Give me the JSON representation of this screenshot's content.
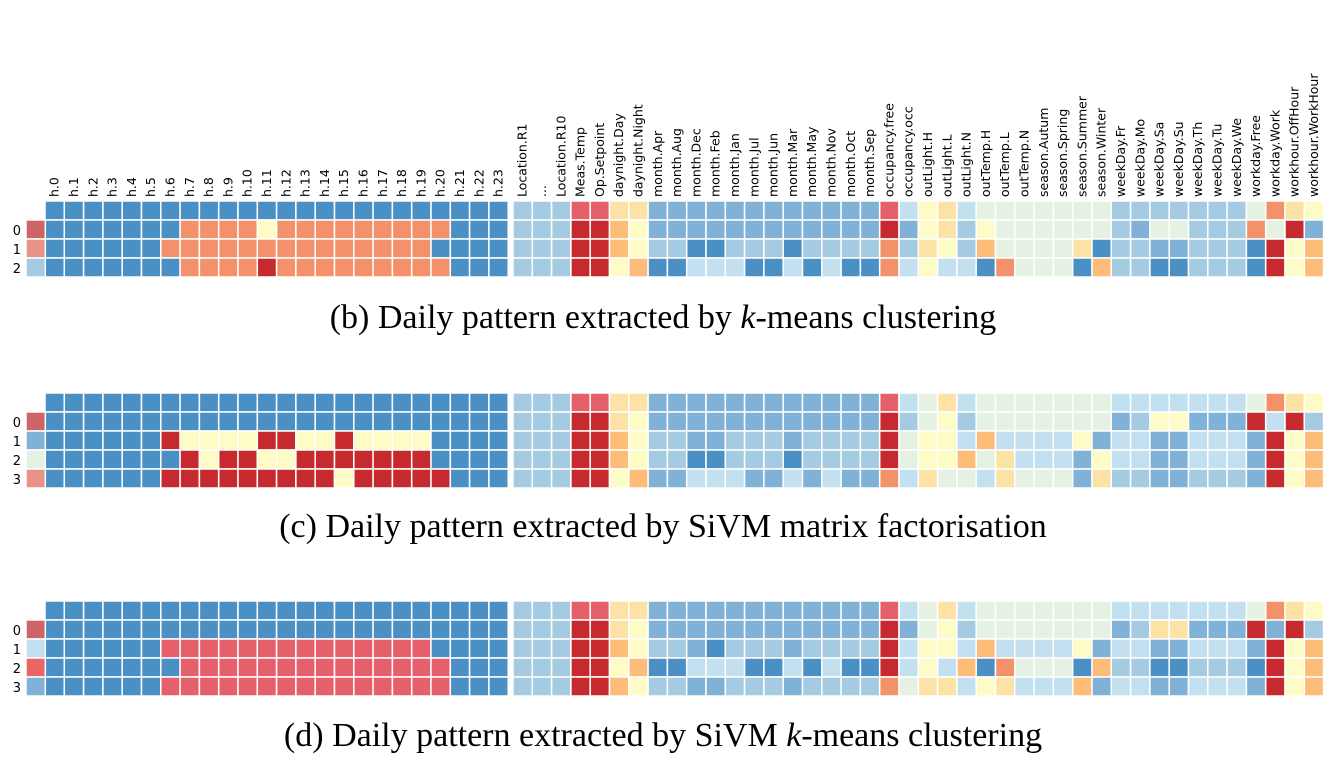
{
  "chart_data": {
    "type": "heatmap",
    "colors": {
      "0": "#4a90c4",
      "1": "#7fb2d6",
      "2": "#a4cbe2",
      "3": "#c2e0ef",
      "4": "#e5f1e3",
      "5": "#fdfbc6",
      "6": "#fde2a6",
      "7": "#fdbd78",
      "8": "#f2916a",
      "9": "#e5606a",
      "10": "#c62a2e",
      "11": "#cd6466",
      "12": "#e89185",
      "13": "#eb6464"
    },
    "columns": {
      "hours": [
        "h.0",
        "h.1",
        "h.2",
        "h.3",
        "h.4",
        "h.5",
        "h.6",
        "h.7",
        "h.8",
        "h.9",
        "h.10",
        "h.11",
        "h.12",
        "h.13",
        "h.14",
        "h.15",
        "h.16",
        "h.17",
        "h.18",
        "h.19",
        "h.20",
        "h.21",
        "h.22",
        "h.23"
      ],
      "features": [
        "Location.R1",
        "...",
        "Location.R10",
        "Meas.Temp",
        "Op.Setpoint",
        "daynight.Day",
        "daynight.Night",
        "month.Apr",
        "month.Aug",
        "month.Dec",
        "month.Feb",
        "month.Jan",
        "month.Jul",
        "month.Jun",
        "month.Mar",
        "month.May",
        "month.Nov",
        "month.Oct",
        "month.Sep",
        "occupancy.free",
        "occupancy.occ",
        "outLight.H",
        "outLight.L",
        "outLight.N",
        "outTemp.H",
        "outTemp.L",
        "outTemp.N",
        "season.Autum",
        "season.Spring",
        "season.Summer",
        "season.Winter",
        "weekDay.Fr",
        "weekDay.Mo",
        "weekDay.Sa",
        "weekDay.Su",
        "weekDay.Th",
        "weekDay.Tu",
        "weekDay.We",
        "workday.Free",
        "workday.Work",
        "workhour.OffHour",
        "workhour.WorkHour"
      ]
    },
    "panels": [
      {
        "caption_before": "(b) Daily pattern extracted by ",
        "caption_italic": "k",
        "caption_after": "-means clustering",
        "row_labels": [
          "0",
          "1",
          "2"
        ],
        "label_colors": [
          11,
          12,
          2
        ],
        "hour_ref": [
          0,
          0,
          0,
          0,
          0,
          0,
          0,
          0,
          0,
          0,
          0,
          0,
          0,
          0,
          0,
          0,
          0,
          0,
          0,
          0,
          0,
          0,
          0,
          0
        ],
        "hour_rows": [
          [
            0,
            0,
            0,
            0,
            0,
            0,
            0,
            8,
            8,
            8,
            8,
            5,
            8,
            8,
            8,
            8,
            8,
            8,
            8,
            8,
            8,
            0,
            0,
            0
          ],
          [
            0,
            0,
            0,
            0,
            0,
            0,
            8,
            8,
            8,
            8,
            8,
            8,
            8,
            8,
            8,
            8,
            8,
            8,
            8,
            8,
            0,
            0,
            0,
            0
          ],
          [
            0,
            0,
            0,
            0,
            0,
            0,
            0,
            8,
            8,
            8,
            8,
            10,
            8,
            8,
            8,
            8,
            8,
            8,
            8,
            8,
            8,
            0,
            0,
            0
          ]
        ],
        "feature_ref": [
          2,
          2,
          2,
          9,
          9,
          6,
          6,
          1,
          1,
          1,
          1,
          1,
          1,
          1,
          1,
          1,
          1,
          1,
          1,
          9,
          3,
          5,
          6,
          3,
          4,
          4,
          4,
          4,
          4,
          4,
          4,
          2,
          2,
          2,
          2,
          2,
          2,
          2,
          4,
          8,
          6,
          5
        ],
        "feature_rows": [
          [
            2,
            2,
            2,
            10,
            10,
            7,
            5,
            1,
            1,
            1,
            1,
            1,
            1,
            1,
            1,
            1,
            1,
            1,
            1,
            10,
            1,
            5,
            6,
            2,
            5,
            4,
            4,
            4,
            4,
            4,
            4,
            2,
            1,
            4,
            4,
            2,
            2,
            2,
            8,
            4,
            10,
            1
          ],
          [
            2,
            2,
            2,
            10,
            10,
            7,
            5,
            2,
            2,
            0,
            0,
            2,
            2,
            2,
            0,
            2,
            2,
            2,
            2,
            8,
            2,
            6,
            5,
            2,
            7,
            4,
            4,
            4,
            4,
            6,
            0,
            2,
            2,
            1,
            1,
            2,
            2,
            2,
            0,
            10,
            5,
            7
          ],
          [
            2,
            2,
            2,
            10,
            10,
            5,
            7,
            0,
            0,
            3,
            3,
            3,
            0,
            0,
            3,
            0,
            3,
            0,
            0,
            8,
            3,
            5,
            3,
            3,
            0,
            8,
            4,
            4,
            4,
            0,
            7,
            2,
            2,
            0,
            0,
            2,
            2,
            2,
            0,
            10,
            5,
            7
          ]
        ]
      },
      {
        "caption_before": "(c) Daily pattern extracted by SiVM matrix factorisation",
        "caption_italic": "",
        "caption_after": "",
        "row_labels": [
          "0",
          "1",
          "2",
          "3"
        ],
        "label_colors": [
          11,
          1,
          4,
          12
        ],
        "hour_ref": [
          0,
          0,
          0,
          0,
          0,
          0,
          0,
          0,
          0,
          0,
          0,
          0,
          0,
          0,
          0,
          0,
          0,
          0,
          0,
          0,
          0,
          0,
          0,
          0
        ],
        "hour_rows": [
          [
            0,
            0,
            0,
            0,
            0,
            0,
            0,
            0,
            0,
            0,
            0,
            0,
            0,
            0,
            0,
            0,
            0,
            0,
            0,
            0,
            0,
            0,
            0,
            0
          ],
          [
            0,
            0,
            0,
            0,
            0,
            0,
            10,
            5,
            5,
            5,
            5,
            10,
            10,
            5,
            5,
            10,
            5,
            5,
            5,
            5,
            0,
            0,
            0,
            0
          ],
          [
            0,
            0,
            0,
            0,
            0,
            0,
            0,
            10,
            5,
            10,
            10,
            5,
            5,
            10,
            10,
            10,
            10,
            10,
            10,
            10,
            0,
            0,
            0,
            0
          ],
          [
            0,
            0,
            0,
            0,
            0,
            0,
            10,
            10,
            10,
            10,
            10,
            10,
            10,
            10,
            10,
            5,
            10,
            10,
            10,
            10,
            10,
            0,
            0,
            0
          ]
        ],
        "feature_ref": [
          2,
          2,
          2,
          9,
          9,
          6,
          6,
          1,
          1,
          1,
          1,
          1,
          1,
          1,
          1,
          1,
          1,
          1,
          1,
          9,
          3,
          4,
          6,
          3,
          4,
          4,
          4,
          4,
          4,
          4,
          4,
          3,
          3,
          3,
          3,
          3,
          3,
          3,
          4,
          8,
          6,
          5
        ],
        "feature_rows": [
          [
            2,
            2,
            2,
            10,
            10,
            6,
            5,
            1,
            1,
            1,
            1,
            1,
            1,
            1,
            1,
            1,
            1,
            1,
            1,
            10,
            2,
            4,
            5,
            2,
            4,
            4,
            4,
            4,
            4,
            4,
            4,
            1,
            2,
            5,
            5,
            1,
            1,
            1,
            10,
            3,
            10,
            2
          ],
          [
            2,
            2,
            2,
            10,
            10,
            7,
            5,
            2,
            2,
            1,
            1,
            2,
            2,
            2,
            1,
            2,
            2,
            2,
            2,
            10,
            4,
            5,
            5,
            3,
            7,
            3,
            3,
            3,
            3,
            5,
            1,
            3,
            3,
            1,
            1,
            3,
            3,
            3,
            1,
            10,
            5,
            7
          ],
          [
            2,
            2,
            2,
            10,
            10,
            7,
            5,
            2,
            2,
            0,
            0,
            2,
            2,
            2,
            0,
            2,
            2,
            2,
            2,
            10,
            4,
            5,
            5,
            7,
            4,
            6,
            3,
            3,
            3,
            1,
            5,
            3,
            3,
            1,
            1,
            3,
            3,
            3,
            1,
            10,
            5,
            7
          ],
          [
            2,
            2,
            2,
            10,
            10,
            5,
            7,
            1,
            1,
            3,
            3,
            3,
            1,
            1,
            3,
            1,
            3,
            1,
            1,
            8,
            3,
            6,
            4,
            4,
            3,
            6,
            4,
            4,
            4,
            1,
            6,
            2,
            2,
            1,
            1,
            2,
            2,
            2,
            1,
            10,
            5,
            7
          ]
        ]
      },
      {
        "caption_before": "(d) Daily pattern extracted by SiVM ",
        "caption_italic": "k",
        "caption_after": "-means clustering",
        "row_labels": [
          "0",
          "1",
          "2",
          "3"
        ],
        "label_colors": [
          11,
          3,
          13,
          1
        ],
        "hour_ref": [
          0,
          0,
          0,
          0,
          0,
          0,
          0,
          0,
          0,
          0,
          0,
          0,
          0,
          0,
          0,
          0,
          0,
          0,
          0,
          0,
          0,
          0,
          0,
          0
        ],
        "hour_rows": [
          [
            0,
            0,
            0,
            0,
            0,
            0,
            0,
            0,
            0,
            0,
            0,
            0,
            0,
            0,
            0,
            0,
            0,
            0,
            0,
            0,
            0,
            0,
            0,
            0
          ],
          [
            0,
            0,
            0,
            0,
            0,
            0,
            9,
            9,
            9,
            9,
            9,
            9,
            9,
            9,
            9,
            9,
            9,
            9,
            9,
            9,
            0,
            0,
            0,
            0
          ],
          [
            0,
            0,
            0,
            0,
            0,
            0,
            0,
            9,
            9,
            9,
            9,
            9,
            9,
            9,
            9,
            9,
            9,
            9,
            9,
            9,
            9,
            0,
            0,
            0
          ],
          [
            0,
            0,
            0,
            0,
            0,
            0,
            9,
            9,
            9,
            9,
            9,
            9,
            9,
            9,
            9,
            9,
            9,
            9,
            9,
            9,
            9,
            0,
            0,
            0
          ]
        ],
        "feature_ref": [
          2,
          2,
          2,
          9,
          9,
          6,
          6,
          1,
          1,
          1,
          1,
          1,
          1,
          1,
          1,
          1,
          1,
          1,
          1,
          9,
          3,
          4,
          6,
          3,
          4,
          4,
          4,
          4,
          4,
          4,
          4,
          3,
          3,
          3,
          3,
          3,
          3,
          3,
          4,
          8,
          6,
          5
        ],
        "feature_rows": [
          [
            2,
            2,
            2,
            10,
            10,
            6,
            5,
            1,
            1,
            1,
            1,
            1,
            1,
            1,
            1,
            1,
            1,
            1,
            1,
            10,
            1,
            4,
            5,
            2,
            4,
            4,
            4,
            4,
            4,
            4,
            4,
            1,
            2,
            6,
            6,
            1,
            1,
            1,
            10,
            1,
            10,
            2
          ],
          [
            2,
            2,
            2,
            10,
            10,
            7,
            5,
            2,
            2,
            1,
            0,
            2,
            2,
            2,
            1,
            2,
            2,
            2,
            2,
            10,
            3,
            5,
            5,
            3,
            7,
            3,
            3,
            3,
            3,
            5,
            1,
            3,
            3,
            1,
            1,
            3,
            3,
            3,
            1,
            10,
            5,
            7
          ],
          [
            2,
            2,
            2,
            10,
            10,
            5,
            7,
            0,
            0,
            3,
            3,
            3,
            0,
            0,
            3,
            0,
            3,
            0,
            0,
            10,
            3,
            5,
            3,
            7,
            0,
            8,
            4,
            4,
            4,
            0,
            7,
            2,
            2,
            0,
            0,
            2,
            2,
            2,
            0,
            10,
            5,
            7
          ],
          [
            2,
            2,
            2,
            10,
            10,
            7,
            5,
            2,
            2,
            1,
            1,
            2,
            2,
            2,
            1,
            2,
            2,
            2,
            2,
            8,
            4,
            6,
            6,
            3,
            5,
            6,
            3,
            3,
            3,
            7,
            1,
            3,
            3,
            1,
            1,
            3,
            3,
            3,
            1,
            10,
            5,
            7
          ]
        ]
      }
    ]
  }
}
